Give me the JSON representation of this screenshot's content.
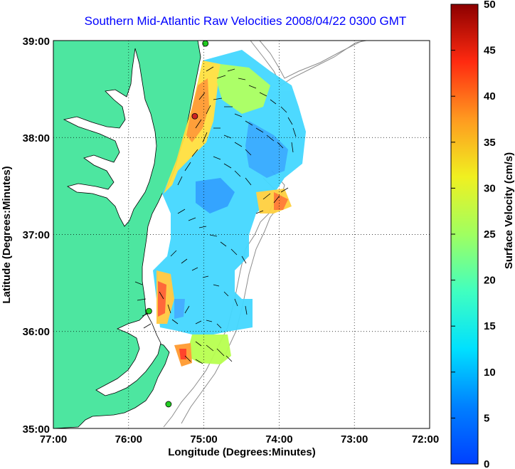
{
  "title": "Southern Mid-Atlantic Raw Velocities 2008/04/22 0300 GMT",
  "map": {
    "xlabel": "Longitude (Degrees:Minutes)",
    "ylabel": "Latitude (Degrees:Minutes)",
    "x_ticks": [
      "77:00",
      "76:00",
      "75:00",
      "74:00",
      "73:00",
      "72:00"
    ],
    "y_ticks": [
      "39:00",
      "38:00",
      "37:00",
      "36:00",
      "35:00"
    ],
    "lon_range": [
      -77,
      -72
    ],
    "lat_range": [
      35,
      39
    ],
    "grid": true,
    "land_color": "#4de6a0",
    "coast_color": "#000000",
    "bathymetry_color": "#8c8c8c"
  },
  "colorbar": {
    "label": "Surface Velocity (cm/s)",
    "ticks": [
      "0",
      "5",
      "10",
      "15",
      "20",
      "25",
      "30",
      "35",
      "40",
      "45",
      "50"
    ],
    "range": [
      0,
      50
    ],
    "colormap": "jet"
  },
  "stations": [
    {
      "lon": -74.98,
      "lat": 38.97,
      "color": "#22cc22"
    },
    {
      "lon": -75.12,
      "lat": 38.22,
      "color": "#cc2222"
    },
    {
      "lon": -75.73,
      "lat": 36.21,
      "color": "#22cc22"
    },
    {
      "lon": -75.47,
      "lat": 35.25,
      "color": "#22cc22"
    }
  ]
}
